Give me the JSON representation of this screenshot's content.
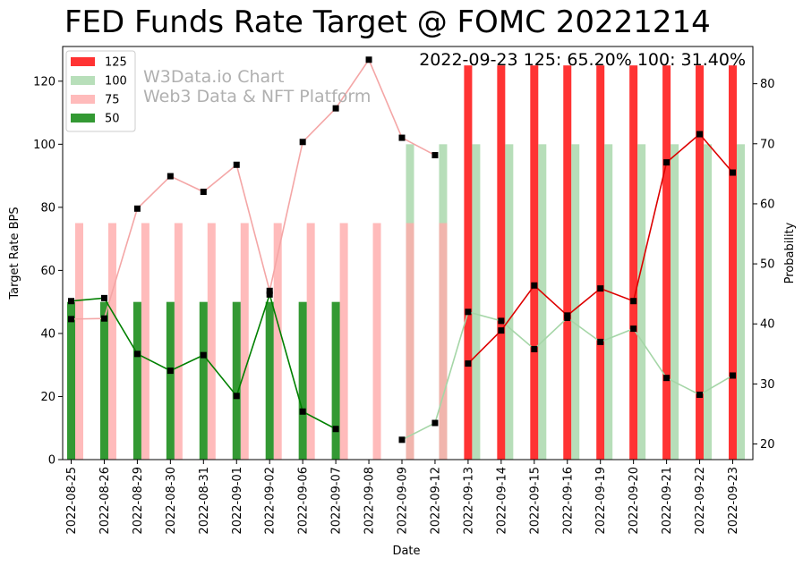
{
  "chart_data": {
    "type": "bar",
    "title": "FED Funds Rate Target @ FOMC 20221214",
    "annotation": "2022-09-23 125: 65.20% 100: 31.40%",
    "watermark": [
      "W3Data.io Chart",
      "Web3 Data & NFT Platform"
    ],
    "xlabel": "Date",
    "ylabel": "Target Rate BPS",
    "y2label": "Probability",
    "ylim": [
      0,
      131
    ],
    "y2lim": [
      17.4,
      86.2
    ],
    "yticks": [
      0,
      20,
      40,
      60,
      80,
      100,
      120
    ],
    "y2ticks": [
      20,
      30,
      40,
      50,
      60,
      70,
      80
    ],
    "legend_position": "top-left",
    "categories": [
      "2022-08-25",
      "2022-08-26",
      "2022-08-29",
      "2022-08-30",
      "2022-08-31",
      "2022-09-01",
      "2022-09-02",
      "2022-09-06",
      "2022-09-07",
      "2022-09-08",
      "2022-09-09",
      "2022-09-12",
      "2022-09-13",
      "2022-09-14",
      "2022-09-15",
      "2022-09-16",
      "2022-09-19",
      "2022-09-20",
      "2022-09-21",
      "2022-09-22",
      "2022-09-23"
    ],
    "bar_series": [
      {
        "name": "125",
        "color": "#ff0000",
        "opacity": 0.8,
        "slot": 0,
        "values": [
          null,
          null,
          null,
          null,
          null,
          null,
          null,
          null,
          null,
          null,
          null,
          null,
          125,
          125,
          125,
          125,
          125,
          125,
          125,
          125,
          125
        ]
      },
      {
        "name": "100",
        "color": "#a5d6a7",
        "opacity": 0.8,
        "slot": 1,
        "values": [
          null,
          null,
          null,
          null,
          null,
          null,
          null,
          null,
          null,
          null,
          100,
          100,
          100,
          100,
          100,
          100,
          100,
          100,
          100,
          100,
          100
        ]
      },
      {
        "name": "75",
        "color": "#ffaaaa",
        "opacity": 0.8,
        "slot": 1,
        "values": [
          75,
          75,
          75,
          75,
          75,
          75,
          75,
          75,
          75,
          75,
          75,
          75,
          null,
          null,
          null,
          null,
          null,
          null,
          null,
          null,
          null
        ]
      },
      {
        "name": "50",
        "color": "#008000",
        "opacity": 0.8,
        "slot": 0,
        "values": [
          50,
          50,
          50,
          50,
          50,
          50,
          50,
          50,
          50,
          null,
          null,
          null,
          null,
          null,
          null,
          null,
          null,
          null,
          null,
          null,
          null
        ]
      }
    ],
    "line_series": [
      {
        "name": "75 probability",
        "color": "#f4a6a6",
        "values": [
          40.8,
          40.9,
          59.2,
          64.6,
          62.0,
          66.5,
          45.5,
          70.3,
          75.9,
          84.0,
          71.0,
          68.1,
          null,
          null,
          null,
          null,
          null,
          null,
          null,
          null,
          null
        ]
      },
      {
        "name": "50 probability",
        "color": "#008000",
        "values": [
          43.8,
          44.3,
          35.0,
          32.2,
          34.8,
          28.0,
          44.9,
          25.4,
          22.5,
          null,
          null,
          null,
          null,
          null,
          null,
          null,
          null,
          null,
          null,
          null,
          null
        ]
      },
      {
        "name": "100 probability",
        "color": "#a5d6a7",
        "values": [
          null,
          null,
          null,
          null,
          null,
          null,
          null,
          null,
          null,
          null,
          20.7,
          23.5,
          42.0,
          40.5,
          35.8,
          41.0,
          37.0,
          39.2,
          31.0,
          28.2,
          31.4
        ]
      },
      {
        "name": "125 probability",
        "color": "#dd0000",
        "values": [
          null,
          null,
          null,
          null,
          null,
          null,
          null,
          null,
          null,
          null,
          null,
          null,
          33.4,
          38.9,
          46.4,
          41.4,
          45.9,
          43.8,
          66.9,
          71.6,
          65.2
        ]
      }
    ],
    "legend": [
      {
        "label": "125",
        "color": "#ff3333"
      },
      {
        "label": "100",
        "color": "#b8dfba"
      },
      {
        "label": "75",
        "color": "#ffbbbb"
      },
      {
        "label": "50",
        "color": "#339933"
      }
    ]
  }
}
